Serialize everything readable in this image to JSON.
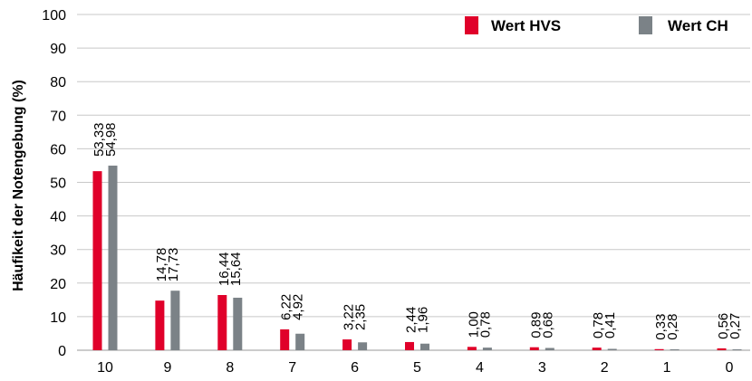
{
  "chart_data": {
    "type": "bar",
    "title": "",
    "xlabel": "",
    "ylabel": "Häufikeit der Notengebung (%)",
    "ylim": [
      0,
      100
    ],
    "yticks": [
      "0",
      "10",
      "20",
      "30",
      "40",
      "50",
      "60",
      "70",
      "80",
      "90",
      "100"
    ],
    "grid": true,
    "legend_position": "top-right",
    "categories": [
      "10",
      "9",
      "8",
      "7",
      "6",
      "5",
      "4",
      "3",
      "2",
      "1",
      "0"
    ],
    "series": [
      {
        "name": "Wert HVS",
        "color": "#e0002a",
        "values": [
          53.33,
          14.78,
          16.44,
          6.22,
          3.22,
          2.44,
          1.0,
          0.89,
          0.78,
          0.33,
          0.56
        ],
        "labels": [
          "53,33",
          "14,78",
          "16,44",
          "6,22",
          "3,22",
          "2,44",
          "1,00",
          "0,89",
          "0,78",
          "0,33",
          "0,56"
        ]
      },
      {
        "name": "Wert CH",
        "color": "#7b8287",
        "values": [
          54.98,
          17.73,
          15.64,
          4.92,
          2.35,
          1.96,
          0.78,
          0.68,
          0.41,
          0.28,
          0.27
        ],
        "labels": [
          "54,98",
          "17,73",
          "15,64",
          "4,92",
          "2,35",
          "1,96",
          "0,78",
          "0,68",
          "0,41",
          "0,28",
          "0,27"
        ]
      }
    ]
  }
}
